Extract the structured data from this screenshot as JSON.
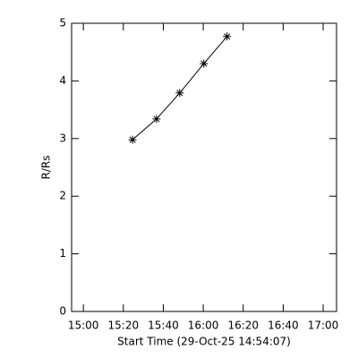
{
  "chart_data": {
    "type": "line",
    "x_label": "Start Time (29-Oct-25 14:54:07)",
    "y_label": "R/Rs",
    "x": [
      924.6,
      936.6,
      948.2,
      960.3,
      971.9
    ],
    "values": [
      2.98,
      3.34,
      3.79,
      4.3,
      4.77
    ],
    "color": "#000000",
    "marker": "asterisk",
    "xlim": [
      894.1,
      1026.7
    ],
    "xticks": [
      {
        "value": 900,
        "label": "15:00"
      },
      {
        "value": 920,
        "label": "15:20"
      },
      {
        "value": 940,
        "label": "15:40"
      },
      {
        "value": 960,
        "label": "16:00"
      },
      {
        "value": 980,
        "label": "16:20"
      },
      {
        "value": 1000,
        "label": "16:40"
      },
      {
        "value": 1020,
        "label": "17:00"
      }
    ],
    "ylim": [
      0,
      5
    ],
    "yticks": [
      0,
      1,
      2,
      3,
      4,
      5
    ],
    "grid": false
  }
}
